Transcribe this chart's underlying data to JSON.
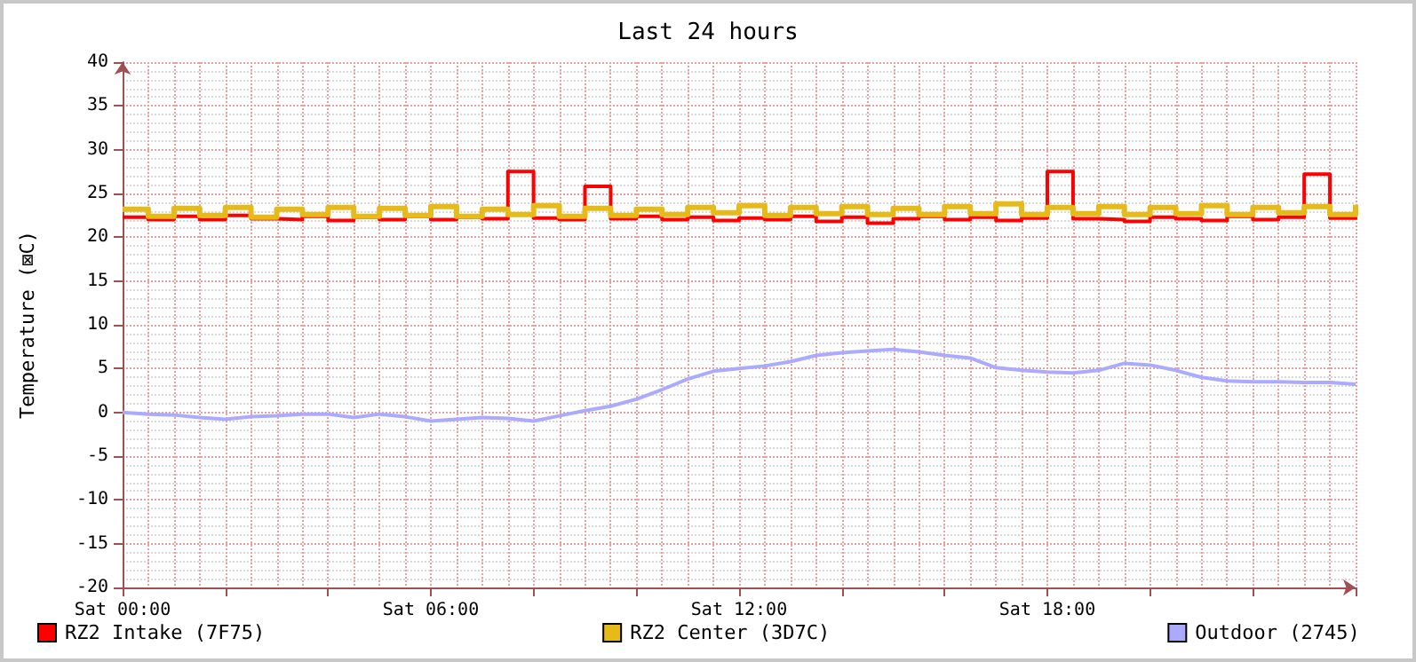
{
  "chart_data": {
    "type": "line",
    "title": "Last 24 hours",
    "ylabel": "Temperature (⊠C)",
    "ylim": [
      -20,
      40
    ],
    "categories": [
      "Sat 00:00",
      null,
      null,
      null,
      null,
      null,
      null,
      null,
      null,
      null,
      null,
      null,
      "Sat 06:00",
      null,
      null,
      null,
      null,
      null,
      null,
      null,
      null,
      null,
      null,
      null,
      "Sat 12:00",
      null,
      null,
      null,
      null,
      null,
      null,
      null,
      null,
      null,
      null,
      null,
      "Sat 18:00",
      null,
      null,
      null,
      null,
      null,
      null,
      null,
      null,
      null,
      null,
      null,
      null
    ],
    "yticks": [
      -20,
      -15,
      -10,
      -5,
      0,
      5,
      10,
      15,
      20,
      25,
      30,
      35,
      40
    ],
    "grid": true,
    "legend": "bottom",
    "series": [
      {
        "name": "RZ2 Intake (7F75)",
        "type": "step",
        "color": "#ff0000",
        "values": [
          22.3,
          22,
          22.4,
          22,
          22.5,
          22.1,
          22,
          22.4,
          21.9,
          22.3,
          22,
          22.4,
          22,
          22.3,
          22.1,
          27.5,
          22.2,
          22,
          25.8,
          22.1,
          22.4,
          22,
          22.3,
          21.9,
          22.2,
          22,
          22.4,
          21.8,
          22.3,
          21.6,
          22.1,
          22.4,
          22,
          22.3,
          21.9,
          22.2,
          27.5,
          22.1,
          22,
          21.8,
          22.3,
          22.1,
          21.9,
          22.4,
          22,
          22.3,
          27.2,
          22.2,
          22
        ]
      },
      {
        "name": "RZ2 Center (3D7C)",
        "type": "step",
        "color": "#e6bb19",
        "values": [
          23.2,
          22.4,
          23.3,
          22.5,
          23.4,
          22.3,
          23.2,
          22.6,
          23.4,
          22.4,
          23.3,
          22.5,
          23.5,
          22.4,
          23.2,
          22.6,
          23.6,
          22.4,
          23.3,
          22.5,
          23.2,
          22.6,
          23.4,
          22.8,
          23.6,
          22.5,
          23.4,
          22.7,
          23.5,
          22.6,
          23.3,
          22.6,
          23.5,
          22.7,
          23.8,
          22.6,
          23.4,
          22.7,
          23.5,
          22.6,
          23.4,
          22.7,
          23.6,
          22.6,
          23.4,
          22.8,
          23.5,
          22.6,
          23.7
        ]
      },
      {
        "name": "Outdoor (2745)",
        "type": "line",
        "color": "#aaaaff",
        "values": [
          0,
          -0.2,
          -0.3,
          -0.6,
          -0.8,
          -0.5,
          -0.4,
          -0.2,
          -0.2,
          -0.6,
          -0.2,
          -0.5,
          -1,
          -0.8,
          -0.6,
          -0.7,
          -1,
          -0.4,
          0.2,
          0.7,
          1.5,
          2.6,
          3.8,
          4.7,
          5,
          5.3,
          5.8,
          6.5,
          6.8,
          7,
          7.2,
          6.9,
          6.5,
          6.2,
          5.1,
          4.8,
          4.6,
          4.5,
          4.8,
          5.6,
          5.4,
          4.8,
          4,
          3.6,
          3.5,
          3.5,
          3.4,
          3.4,
          3.2
        ]
      }
    ]
  }
}
